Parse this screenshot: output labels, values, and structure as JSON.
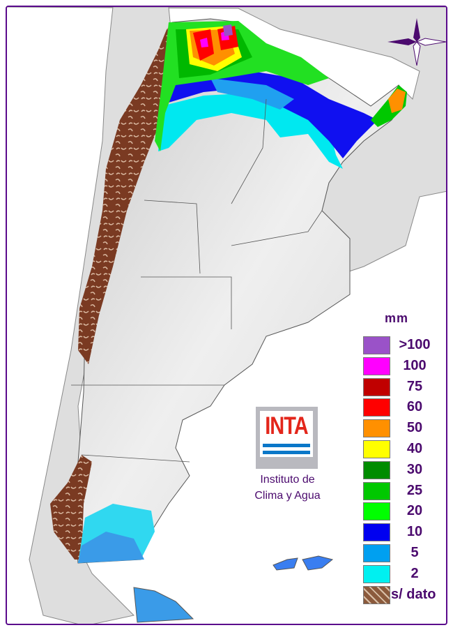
{
  "legend": {
    "unit": "mm",
    "items": [
      {
        "label": ">100",
        "color": "#9a52c8"
      },
      {
        "label": "100",
        "color": "#ff00ff"
      },
      {
        "label": "75",
        "color": "#c00000"
      },
      {
        "label": "60",
        "color": "#ff0000"
      },
      {
        "label": "50",
        "color": "#ff9000"
      },
      {
        "label": "40",
        "color": "#ffff00"
      },
      {
        "label": "30",
        "color": "#008c00"
      },
      {
        "label": "25",
        "color": "#00c800"
      },
      {
        "label": "20",
        "color": "#00ff00"
      },
      {
        "label": "10",
        "color": "#0000f0"
      },
      {
        "label": "5",
        "color": "#00a0f0"
      },
      {
        "label": "2",
        "color": "#00f0f0"
      },
      {
        "label": "s/ dato",
        "color": "#8b5a3c"
      }
    ]
  },
  "logo": {
    "text": "INTA",
    "institute_line1": "Instituto de",
    "institute_line2": "Clima y Agua"
  },
  "compass_icon": "compass-rose-icon"
}
